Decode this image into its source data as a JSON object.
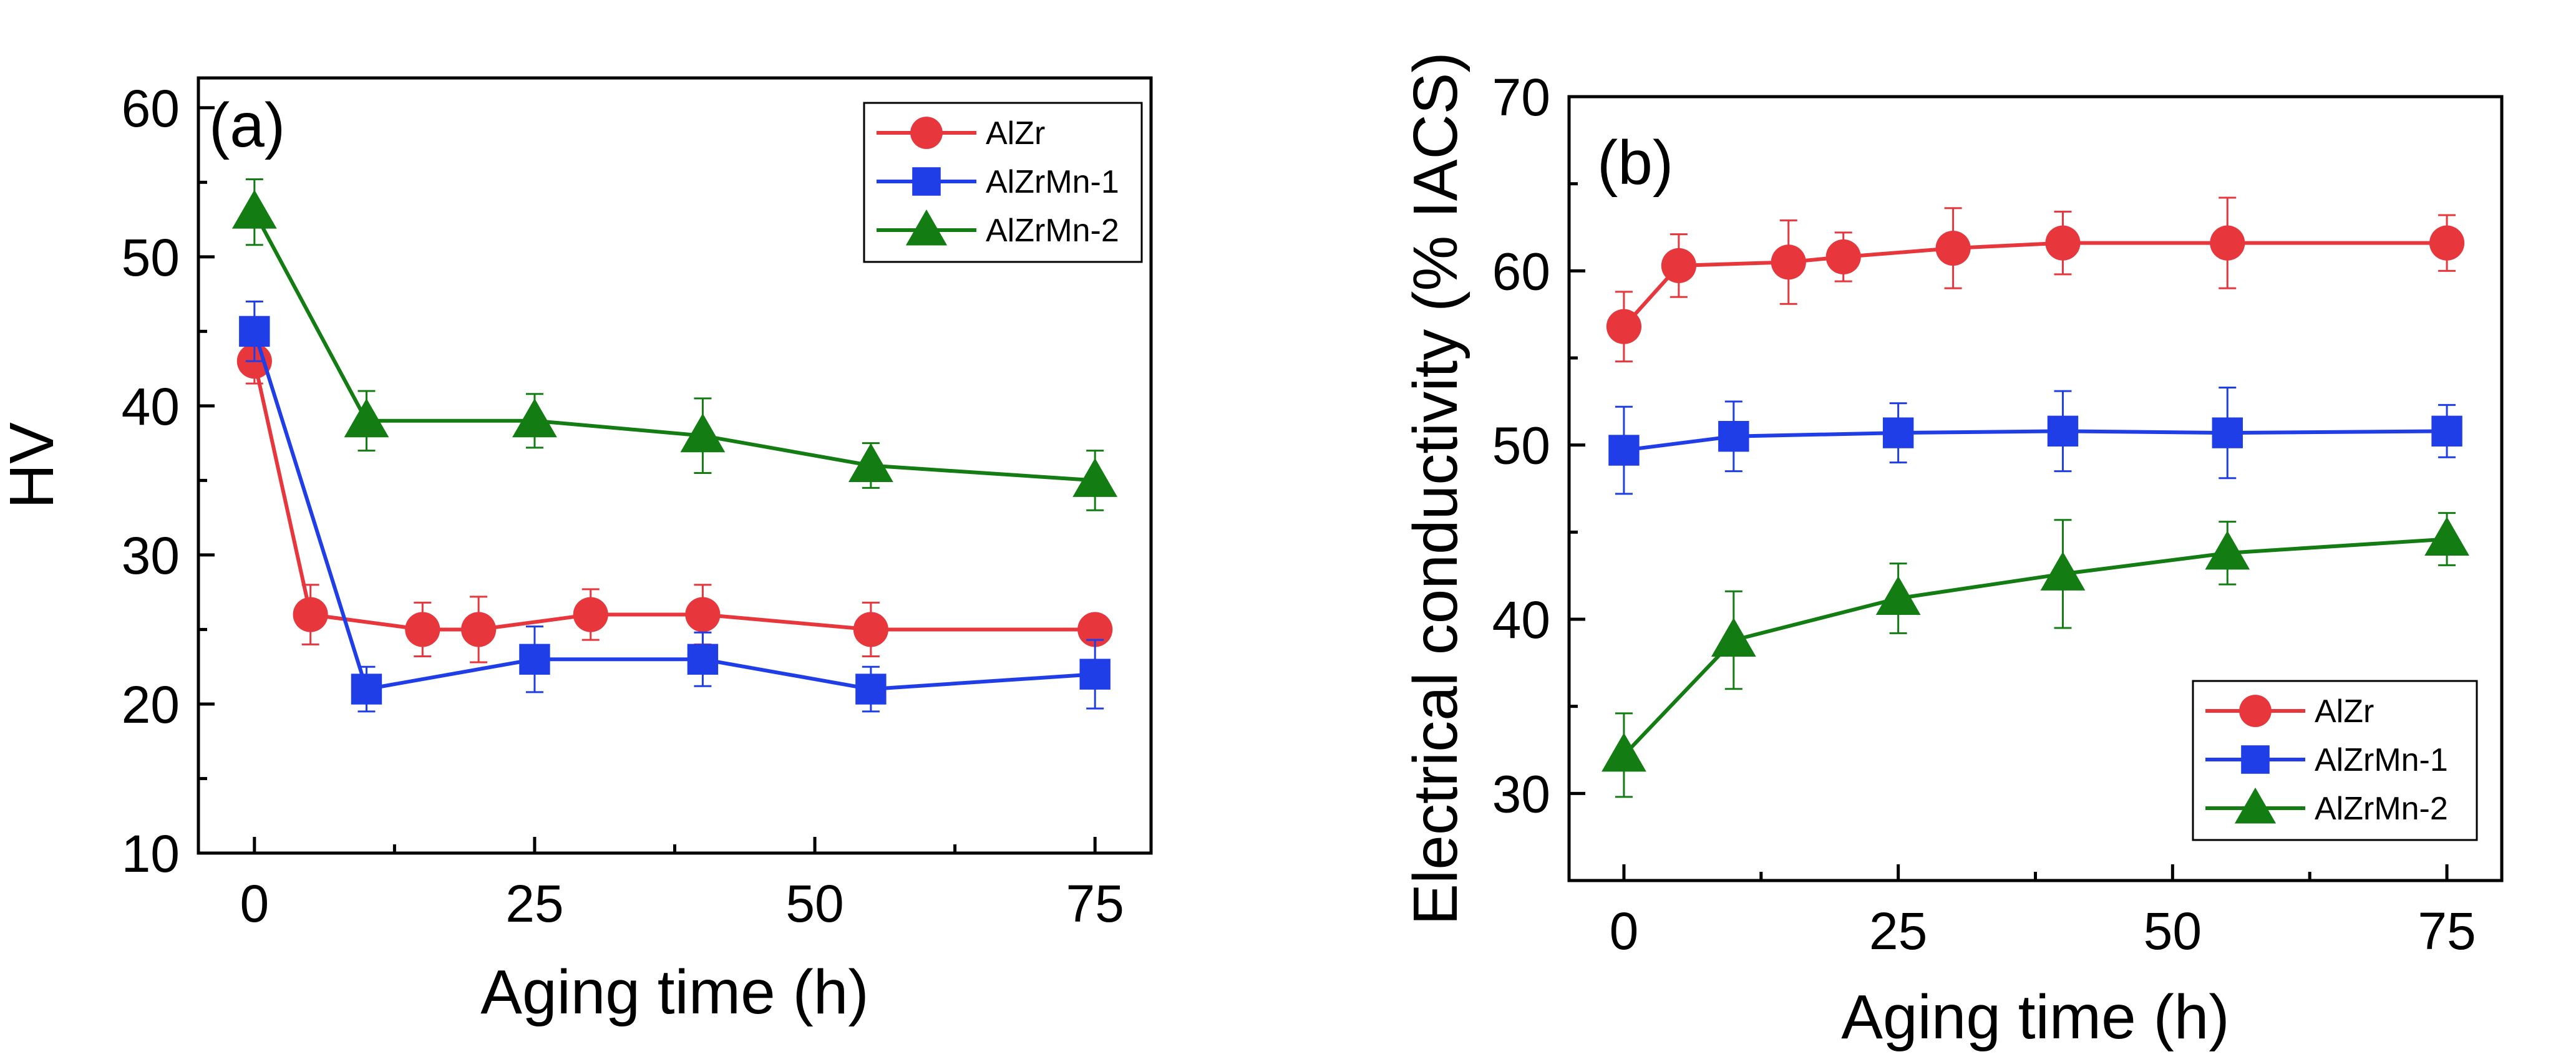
{
  "chart_data": [
    {
      "type": "line",
      "panel_label": "(a)",
      "xlabel": "Aging time (h)",
      "ylabel": "HV",
      "xlim": [
        -5,
        80
      ],
      "ylim": [
        10,
        62
      ],
      "xticks": [
        0,
        25,
        50,
        75
      ],
      "yticks": [
        10,
        20,
        30,
        40,
        50,
        60
      ],
      "legend_position": "top-right",
      "series": [
        {
          "name": "AlZr",
          "color": "#e8363d",
          "marker": "circle",
          "x": [
            0,
            5,
            15,
            20,
            30,
            40,
            55,
            75
          ],
          "y": [
            43,
            26,
            25,
            25,
            26,
            26,
            25,
            25
          ],
          "err": [
            1.5,
            2,
            1.8,
            2.2,
            1.7,
            2,
            1.8,
            0.5
          ]
        },
        {
          "name": "AlZrMn-1",
          "color": "#1f3ee8",
          "marker": "square",
          "x": [
            0,
            10,
            25,
            40,
            55,
            75
          ],
          "y": [
            45,
            21,
            23,
            23,
            21,
            22
          ],
          "err": [
            2,
            1.5,
            2.2,
            1.8,
            1.5,
            2.3
          ]
        },
        {
          "name": "AlZrMn-2",
          "color": "#137d13",
          "marker": "triangle",
          "x": [
            0,
            10,
            25,
            40,
            55,
            75
          ],
          "y": [
            53,
            39,
            39,
            38,
            36,
            35
          ],
          "err": [
            2.2,
            2,
            1.8,
            2.5,
            1.5,
            2
          ]
        }
      ]
    },
    {
      "type": "line",
      "panel_label": "(b)",
      "xlabel": "Aging time (h)",
      "ylabel": "Electrical conductivity (% IACS)",
      "xlim": [
        -5,
        80
      ],
      "ylim": [
        25,
        70
      ],
      "xticks": [
        0,
        25,
        50,
        75
      ],
      "yticks": [
        30,
        40,
        50,
        60,
        70
      ],
      "legend_position": "bottom-right",
      "series": [
        {
          "name": "AlZr",
          "color": "#e8363d",
          "marker": "circle",
          "x": [
            0,
            5,
            15,
            20,
            30,
            40,
            55,
            75
          ],
          "y": [
            56.8,
            60.3,
            60.5,
            60.8,
            61.3,
            61.6,
            61.6,
            61.6
          ],
          "err": [
            2,
            1.8,
            2.4,
            1.4,
            2.3,
            1.8,
            2.6,
            1.6
          ]
        },
        {
          "name": "AlZrMn-1",
          "color": "#1f3ee8",
          "marker": "square",
          "x": [
            0,
            10,
            25,
            40,
            55,
            75
          ],
          "y": [
            49.7,
            50.5,
            50.7,
            50.8,
            50.7,
            50.8
          ],
          "err": [
            2.5,
            2,
            1.7,
            2.3,
            2.6,
            1.5
          ]
        },
        {
          "name": "AlZrMn-2",
          "color": "#137d13",
          "marker": "triangle",
          "x": [
            0,
            10,
            25,
            40,
            55,
            75
          ],
          "y": [
            32.2,
            38.8,
            41.2,
            42.6,
            43.8,
            44.6
          ],
          "err": [
            2.4,
            2.8,
            2,
            3.1,
            1.8,
            1.5
          ]
        }
      ]
    }
  ]
}
